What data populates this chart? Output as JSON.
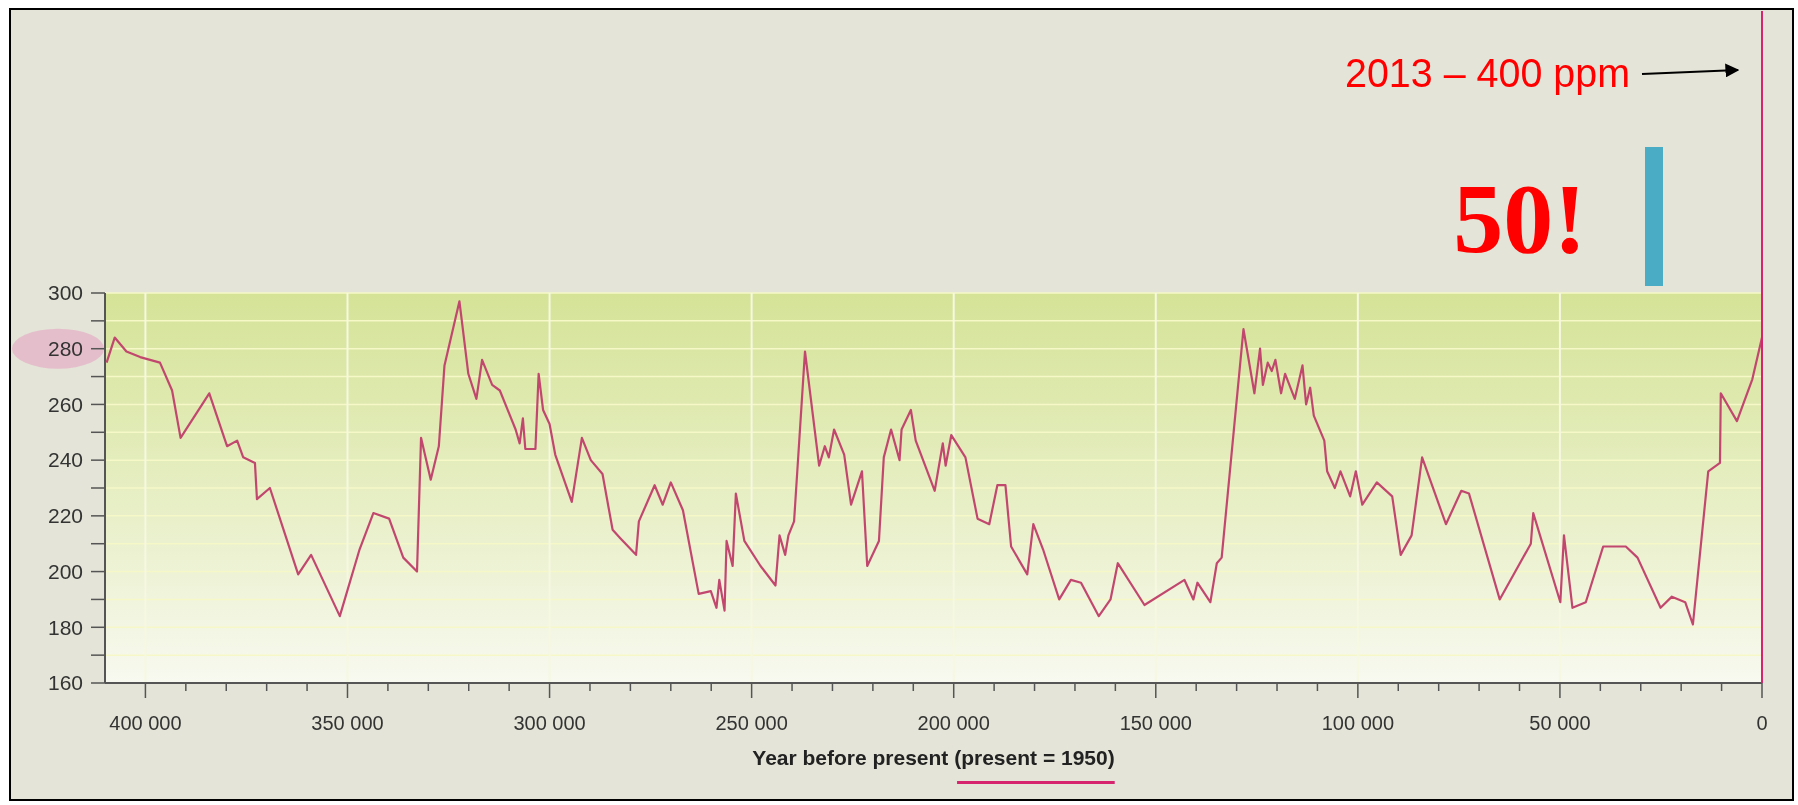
{
  "chart_data": {
    "type": "line",
    "xlabel": "Year before present (present = 1950)",
    "xlim": [
      410000,
      0
    ],
    "xticks": [
      {
        "value": 400000,
        "label": "400 000"
      },
      {
        "value": 390000,
        "label": null
      },
      {
        "value": 380000,
        "label": null
      },
      {
        "value": 370000,
        "label": null
      },
      {
        "value": 360000,
        "label": null
      },
      {
        "value": 350000,
        "label": "350 000"
      },
      {
        "value": 340000,
        "label": null
      },
      {
        "value": 330000,
        "label": null
      },
      {
        "value": 320000,
        "label": null
      },
      {
        "value": 310000,
        "label": null
      },
      {
        "value": 300000,
        "label": "300 000"
      },
      {
        "value": 290000,
        "label": null
      },
      {
        "value": 280000,
        "label": null
      },
      {
        "value": 270000,
        "label": null
      },
      {
        "value": 260000,
        "label": null
      },
      {
        "value": 250000,
        "label": "250 000"
      },
      {
        "value": 240000,
        "label": null
      },
      {
        "value": 230000,
        "label": null
      },
      {
        "value": 220000,
        "label": null
      },
      {
        "value": 210000,
        "label": null
      },
      {
        "value": 200000,
        "label": "200 000"
      },
      {
        "value": 190000,
        "label": null
      },
      {
        "value": 180000,
        "label": null
      },
      {
        "value": 170000,
        "label": null
      },
      {
        "value": 160000,
        "label": null
      },
      {
        "value": 150000,
        "label": "150 000"
      },
      {
        "value": 140000,
        "label": null
      },
      {
        "value": 130000,
        "label": null
      },
      {
        "value": 120000,
        "label": null
      },
      {
        "value": 110000,
        "label": null
      },
      {
        "value": 100000,
        "label": "100 000"
      },
      {
        "value": 90000,
        "label": null
      },
      {
        "value": 80000,
        "label": null
      },
      {
        "value": 70000,
        "label": null
      },
      {
        "value": 60000,
        "label": null
      },
      {
        "value": 50000,
        "label": "50 000"
      },
      {
        "value": 40000,
        "label": null
      },
      {
        "value": 30000,
        "label": null
      },
      {
        "value": 20000,
        "label": null
      },
      {
        "value": 10000,
        "label": null
      },
      0
    ],
    "ylim": [
      160,
      300
    ],
    "yticks": [
      160,
      {
        "value": 170,
        "label": null
      },
      180,
      {
        "value": 190,
        "label": null
      },
      200,
      {
        "value": 210,
        "label": null
      },
      220,
      {
        "value": 230,
        "label": null
      },
      240,
      {
        "value": 250,
        "label": null
      },
      260,
      {
        "value": 270,
        "label": null
      },
      280,
      {
        "value": 290,
        "label": null
      },
      300
    ],
    "grid": true,
    "series": [
      {
        "color": "#c2476f",
        "x": [
          409600,
          407600,
          404700,
          401300,
          396400,
          393400,
          391300,
          384200,
          379800,
          377300,
          375800,
          372900,
          372400,
          369200,
          362200,
          359000,
          351900,
          347000,
          343600,
          339700,
          336200,
          332800,
          331800,
          329400,
          327400,
          326000,
          322300,
          320100,
          318100,
          316700,
          314200,
          312300,
          308400,
          307400,
          306600,
          306000,
          303500,
          302700,
          301600,
          300000,
          298600,
          294500,
          292000,
          289800,
          286900,
          284400,
          282500,
          278600,
          277900,
          274000,
          272000,
          270000,
          267000,
          263100,
          260100,
          258700,
          258000,
          256700,
          256200,
          254700,
          253900,
          251800,
          247800,
          244100,
          243100,
          241700,
          240900,
          239500,
          236800,
          233300,
          231900,
          230900,
          229600,
          227100,
          225400,
          222700,
          221400,
          218500,
          217300,
          215500,
          213400,
          212900,
          210600,
          209400,
          204700,
          202700,
          202000,
          200600,
          197100,
          194100,
          191200,
          189200,
          187200,
          185800,
          181800,
          180300,
          177900,
          173900,
          171000,
          168500,
          164100,
          161200,
          159400,
          152800,
          142900,
          140700,
          139700,
          136500,
          134900,
          133700,
          128300,
          125600,
          124200,
          123500,
          122300,
          121300,
          120400,
          119000,
          118000,
          115600,
          113700,
          112800,
          111800,
          110900,
          108300,
          107600,
          105700,
          104300,
          101900,
          100500,
          98900,
          95300,
          91500,
          89400,
          86700,
          84100,
          78200,
          74400,
          72500,
          64900,
          57200,
          56600,
          49900,
          49000,
          46900,
          43600,
          39300,
          33700,
          30800,
          25100,
          22300,
          19000,
          17100,
          13300,
          10400,
          10200,
          6200,
          2400,
          0
        ],
        "values": [
          275,
          284,
          279,
          277,
          275,
          265,
          248,
          264,
          245,
          247,
          241,
          239,
          226,
          230,
          199,
          206,
          184,
          208,
          221,
          219,
          205,
          200,
          248,
          233,
          245,
          274,
          297,
          271,
          262,
          276,
          267,
          265,
          251,
          246,
          255,
          244,
          244,
          271,
          258,
          253,
          242,
          225,
          248,
          240,
          235,
          215,
          212,
          206,
          218,
          231,
          224,
          232,
          222,
          192,
          193,
          187,
          197,
          186,
          211,
          202,
          228,
          211,
          202,
          195,
          213,
          206,
          213,
          218,
          279,
          238,
          245,
          241,
          251,
          242,
          224,
          236,
          202,
          211,
          241,
          251,
          240,
          251,
          258,
          247,
          229,
          246,
          238,
          249,
          241,
          219,
          217,
          231,
          231,
          209,
          199,
          217,
          208,
          190,
          197,
          196,
          184,
          190,
          203,
          188,
          197,
          190,
          196,
          189,
          203,
          205,
          287,
          264,
          280,
          267,
          275,
          272,
          276,
          264,
          271,
          262,
          274,
          260,
          266,
          256,
          247,
          236,
          230,
          236,
          227,
          236,
          224,
          232,
          227,
          206,
          213,
          241,
          217,
          229,
          228,
          190,
          210,
          221,
          189,
          213,
          187,
          189,
          209,
          209,
          205,
          187,
          191,
          189,
          181,
          236,
          239,
          264,
          254,
          269,
          284
        ]
      }
    ],
    "ref_lines": [
      {
        "axis": "x",
        "value": 0,
        "color": "#d6246e"
      }
    ],
    "annotations": [
      "2013 – 400 ppm",
      "50!"
    ]
  }
}
